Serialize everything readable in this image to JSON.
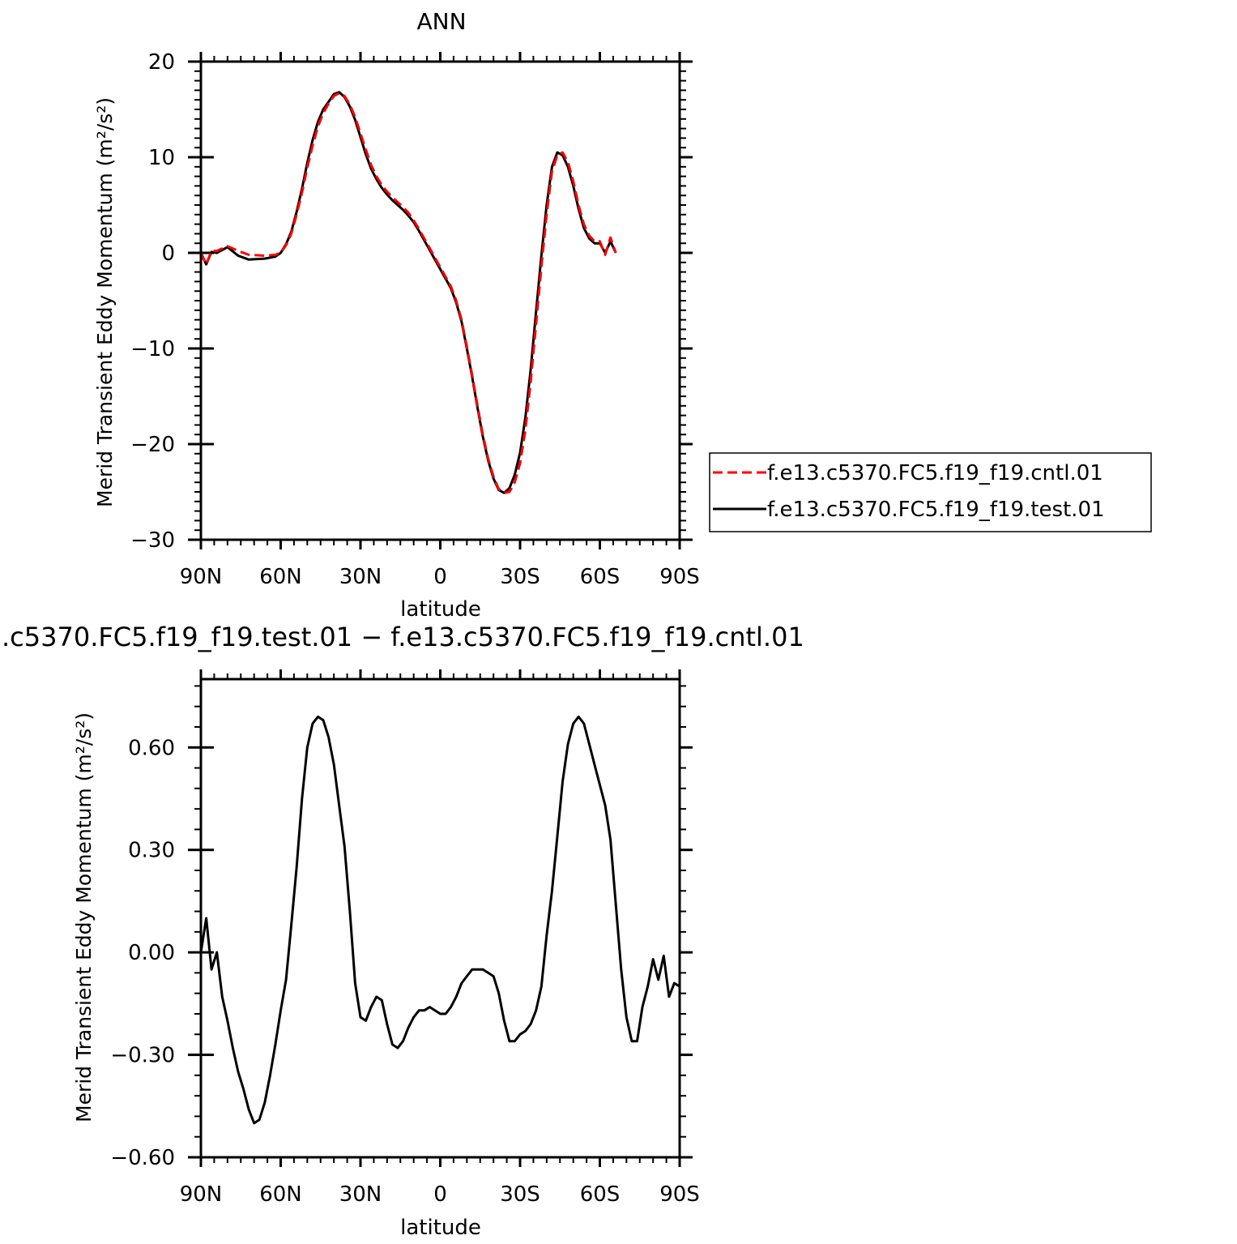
{
  "chart_data": [
    {
      "type": "line",
      "title": "ANN",
      "xlabel": "latitude",
      "ylabel": "Merid Transient Eddy Momentum (m²/s²)",
      "xlim": [
        90,
        -90
      ],
      "ylim": [
        -30,
        20
      ],
      "xticks": [
        90,
        60,
        30,
        0,
        -30,
        -60,
        -90
      ],
      "xtick_labels": [
        "90N",
        "60N",
        "30N",
        "0",
        "30S",
        "60S",
        "90S"
      ],
      "yticks": [
        -30,
        -20,
        -10,
        0,
        10,
        20
      ],
      "ytick_labels": [
        "−30",
        "−20",
        "−10",
        "0",
        "10",
        "20"
      ],
      "legend_position": "right",
      "grid": false,
      "series": [
        {
          "name": "f.e13.c5370.FC5.f19_f19.cntl.01",
          "color": "#ff0000",
          "dash": "dashed",
          "points": [
            [
              90,
              0
            ],
            [
              88,
              -1.2
            ],
            [
              86,
              0.2
            ],
            [
              84,
              0.2
            ],
            [
              80,
              0.7
            ],
            [
              76,
              0.2
            ],
            [
              72,
              -0.2
            ],
            [
              66,
              -0.3
            ],
            [
              62,
              -0.2
            ],
            [
              60,
              0
            ],
            [
              58,
              0.8
            ],
            [
              56,
              2
            ],
            [
              54,
              4
            ],
            [
              52,
              6.3
            ],
            [
              50,
              8.9
            ],
            [
              48,
              11.2
            ],
            [
              46,
              13.2
            ],
            [
              44,
              14.6
            ],
            [
              42,
              15.6
            ],
            [
              40,
              16.4
            ],
            [
              38,
              16.7
            ],
            [
              36,
              16.4
            ],
            [
              34,
              15.5
            ],
            [
              32,
              14.2
            ],
            [
              30,
              12.5
            ],
            [
              28,
              10.8
            ],
            [
              26,
              9.2
            ],
            [
              24,
              8.0
            ],
            [
              22,
              7.1
            ],
            [
              20,
              6.4
            ],
            [
              18,
              5.8
            ],
            [
              16,
              5.3
            ],
            [
              14,
              4.8
            ],
            [
              12,
              4.2
            ],
            [
              10,
              3.4
            ],
            [
              8,
              2.5
            ],
            [
              6,
              1.5
            ],
            [
              4,
              0.5
            ],
            [
              2,
              -0.5
            ],
            [
              0,
              -1.5
            ],
            [
              -2,
              -2.5
            ],
            [
              -4,
              -3.5
            ],
            [
              -6,
              -5
            ],
            [
              -8,
              -7
            ],
            [
              -10,
              -9.8
            ],
            [
              -12,
              -12.8
            ],
            [
              -14,
              -16
            ],
            [
              -16,
              -19
            ],
            [
              -18,
              -21.5
            ],
            [
              -20,
              -23.4
            ],
            [
              -22,
              -24.7
            ],
            [
              -24,
              -25.1
            ],
            [
              -26,
              -25
            ],
            [
              -28,
              -24
            ],
            [
              -30,
              -22
            ],
            [
              -32,
              -18.5
            ],
            [
              -34,
              -13.5
            ],
            [
              -36,
              -7.5
            ],
            [
              -38,
              -1.5
            ],
            [
              -40,
              4
            ],
            [
              -42,
              8.5
            ],
            [
              -44,
              10.2
            ],
            [
              -46,
              10.5
            ],
            [
              -48,
              9.5
            ],
            [
              -50,
              7.5
            ],
            [
              -52,
              5
            ],
            [
              -54,
              3
            ],
            [
              -56,
              1.8
            ],
            [
              -58,
              1.2
            ],
            [
              -60,
              1.2
            ],
            [
              -62,
              -0.2
            ],
            [
              -64,
              1.6
            ],
            [
              -66,
              0
            ]
          ]
        },
        {
          "name": "f.e13.c5370.FC5.f19_f19.test.01",
          "color": "#000000",
          "dash": "solid",
          "points": [
            [
              90,
              0
            ],
            [
              88,
              -1.2
            ],
            [
              86,
              0.1
            ],
            [
              84,
              0
            ],
            [
              80,
              0.6
            ],
            [
              76,
              -0.3
            ],
            [
              72,
              -0.7
            ],
            [
              66,
              -0.6
            ],
            [
              62,
              -0.4
            ],
            [
              60,
              0
            ],
            [
              58,
              0.9
            ],
            [
              56,
              2.2
            ],
            [
              54,
              4.3
            ],
            [
              52,
              6.7
            ],
            [
              50,
              9.4
            ],
            [
              48,
              11.8
            ],
            [
              46,
              13.7
            ],
            [
              44,
              15
            ],
            [
              42,
              15.8
            ],
            [
              40,
              16.6
            ],
            [
              38,
              16.8
            ],
            [
              36,
              16.3
            ],
            [
              34,
              15.3
            ],
            [
              32,
              13.9
            ],
            [
              30,
              12.1
            ],
            [
              28,
              10.3
            ],
            [
              26,
              8.8
            ],
            [
              24,
              7.7
            ],
            [
              22,
              6.8
            ],
            [
              20,
              6.1
            ],
            [
              18,
              5.5
            ],
            [
              16,
              5
            ],
            [
              14,
              4.5
            ],
            [
              12,
              3.9
            ],
            [
              10,
              3.2
            ],
            [
              8,
              2.3
            ],
            [
              6,
              1.3
            ],
            [
              4,
              0.3
            ],
            [
              2,
              -0.7
            ],
            [
              0,
              -1.7
            ],
            [
              -2,
              -2.7
            ],
            [
              -4,
              -3.7
            ],
            [
              -6,
              -5.2
            ],
            [
              -8,
              -7.2
            ],
            [
              -10,
              -10
            ],
            [
              -12,
              -13
            ],
            [
              -14,
              -16.2
            ],
            [
              -16,
              -19.2
            ],
            [
              -18,
              -21.7
            ],
            [
              -20,
              -23.6
            ],
            [
              -22,
              -24.8
            ],
            [
              -24,
              -25.1
            ],
            [
              -26,
              -24.6
            ],
            [
              -28,
              -23.2
            ],
            [
              -30,
              -20.9
            ],
            [
              -32,
              -17.2
            ],
            [
              -34,
              -12.2
            ],
            [
              -36,
              -6.2
            ],
            [
              -38,
              -0.3
            ],
            [
              -40,
              5
            ],
            [
              -42,
              9
            ],
            [
              -44,
              10.5
            ],
            [
              -46,
              10.2
            ],
            [
              -48,
              9
            ],
            [
              -50,
              7
            ],
            [
              -52,
              4.6
            ],
            [
              -54,
              2.6
            ],
            [
              -56,
              1.5
            ],
            [
              -58,
              1
            ],
            [
              -60,
              1
            ],
            [
              -62,
              0
            ],
            [
              -64,
              1.2
            ],
            [
              -66,
              0
            ]
          ]
        }
      ]
    },
    {
      "type": "line",
      "title": ".c5370.FC5.f19_f19.test.01 − f.e13.c5370.FC5.f19_f19.cntl.01",
      "xlabel": "latitude",
      "ylabel": "Merid Transient Eddy Momentum (m²/s²)",
      "xlim": [
        90,
        -90
      ],
      "ylim": [
        -0.6,
        0.8
      ],
      "xticks": [
        90,
        60,
        30,
        0,
        -30,
        -60,
        -90
      ],
      "xtick_labels": [
        "90N",
        "60N",
        "30N",
        "0",
        "30S",
        "60S",
        "90S"
      ],
      "yticks": [
        -0.6,
        -0.3,
        0,
        0.3,
        0.6
      ],
      "ytick_labels": [
        "−0.60",
        "−0.30",
        "0.00",
        "0.30",
        "0.60"
      ],
      "grid": false,
      "series": [
        {
          "color": "#000000",
          "dash": "solid",
          "points": [
            [
              90,
              0
            ],
            [
              88,
              0.1
            ],
            [
              86,
              -0.05
            ],
            [
              84,
              0
            ],
            [
              82,
              -0.13
            ],
            [
              80,
              -0.2
            ],
            [
              78,
              -0.28
            ],
            [
              76,
              -0.35
            ],
            [
              74,
              -0.4
            ],
            [
              72,
              -0.46
            ],
            [
              70,
              -0.5
            ],
            [
              68,
              -0.49
            ],
            [
              66,
              -0.44
            ],
            [
              64,
              -0.36
            ],
            [
              62,
              -0.27
            ],
            [
              60,
              -0.17
            ],
            [
              58,
              -0.08
            ],
            [
              56,
              0.08
            ],
            [
              54,
              0.25
            ],
            [
              52,
              0.45
            ],
            [
              50,
              0.6
            ],
            [
              48,
              0.67
            ],
            [
              46,
              0.69
            ],
            [
              44,
              0.68
            ],
            [
              42,
              0.63
            ],
            [
              40,
              0.55
            ],
            [
              38,
              0.43
            ],
            [
              36,
              0.31
            ],
            [
              34,
              0.12
            ],
            [
              32,
              -0.09
            ],
            [
              30,
              -0.19
            ],
            [
              28,
              -0.2
            ],
            [
              26,
              -0.16
            ],
            [
              24,
              -0.13
            ],
            [
              22,
              -0.14
            ],
            [
              20,
              -0.21
            ],
            [
              18,
              -0.27
            ],
            [
              16,
              -0.28
            ],
            [
              14,
              -0.26
            ],
            [
              12,
              -0.22
            ],
            [
              10,
              -0.19
            ],
            [
              8,
              -0.17
            ],
            [
              6,
              -0.17
            ],
            [
              4,
              -0.16
            ],
            [
              2,
              -0.17
            ],
            [
              0,
              -0.18
            ],
            [
              -2,
              -0.18
            ],
            [
              -4,
              -0.16
            ],
            [
              -6,
              -0.13
            ],
            [
              -8,
              -0.09
            ],
            [
              -10,
              -0.07
            ],
            [
              -12,
              -0.05
            ],
            [
              -14,
              -0.05
            ],
            [
              -16,
              -0.05
            ],
            [
              -18,
              -0.06
            ],
            [
              -20,
              -0.07
            ],
            [
              -22,
              -0.12
            ],
            [
              -24,
              -0.2
            ],
            [
              -26,
              -0.26
            ],
            [
              -28,
              -0.26
            ],
            [
              -30,
              -0.24
            ],
            [
              -32,
              -0.23
            ],
            [
              -34,
              -0.21
            ],
            [
              -36,
              -0.17
            ],
            [
              -38,
              -0.1
            ],
            [
              -40,
              0.05
            ],
            [
              -42,
              0.18
            ],
            [
              -44,
              0.34
            ],
            [
              -46,
              0.5
            ],
            [
              -48,
              0.61
            ],
            [
              -50,
              0.67
            ],
            [
              -52,
              0.69
            ],
            [
              -54,
              0.67
            ],
            [
              -56,
              0.61
            ],
            [
              -58,
              0.55
            ],
            [
              -60,
              0.49
            ],
            [
              -62,
              0.43
            ],
            [
              -64,
              0.33
            ],
            [
              -66,
              0.14
            ],
            [
              -68,
              -0.05
            ],
            [
              -70,
              -0.19
            ],
            [
              -72,
              -0.26
            ],
            [
              -74,
              -0.26
            ],
            [
              -76,
              -0.16
            ],
            [
              -78,
              -0.1
            ],
            [
              -80,
              -0.02
            ],
            [
              -82,
              -0.08
            ],
            [
              -84,
              -0.01
            ],
            [
              -86,
              -0.13
            ],
            [
              -88,
              -0.09
            ],
            [
              -90,
              -0.1
            ],
            [
              -90,
              0
            ]
          ]
        }
      ]
    }
  ]
}
